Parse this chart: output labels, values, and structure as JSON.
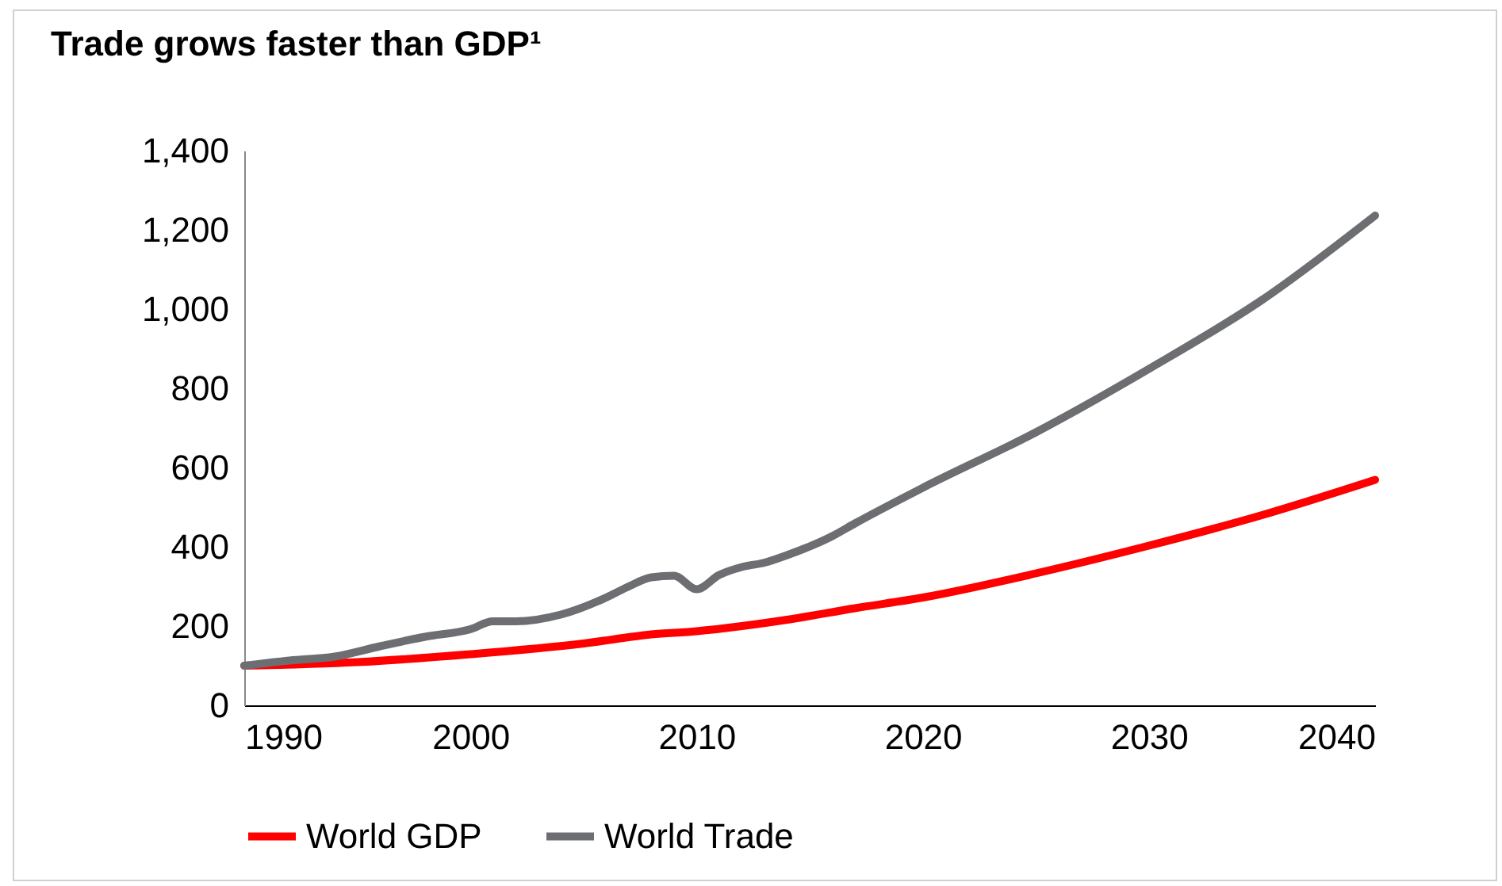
{
  "chart_data": {
    "type": "line",
    "title": "Trade grows faster than GDP¹",
    "xlim": [
      1990,
      2040
    ],
    "xticks": [
      1990,
      2000,
      2010,
      2020,
      2030,
      2040
    ],
    "ylim": [
      0,
      1400
    ],
    "yticks": [
      0,
      200,
      400,
      600,
      800,
      {
        "value": 1000,
        "label": "1,000"
      },
      {
        "value": 1200,
        "label": "1,200"
      },
      {
        "value": 1400,
        "label": "1,400"
      }
    ],
    "grid": false,
    "legend": "bottom",
    "series": [
      {
        "name": "World GDP",
        "color": "#ff0000",
        "x": [
          1990,
          1995,
          2000,
          2005,
          2008,
          2010,
          2012,
          2014,
          2017,
          2020,
          2025,
          2030,
          2035,
          2040
        ],
        "values": [
          100,
          109,
          129,
          156,
          179,
          187,
          200,
          216,
          245,
          272,
          333,
          403,
          480,
          569
        ]
      },
      {
        "name": "World Trade",
        "color": "#6d6e71",
        "x": [
          1990,
          1992,
          1994,
          1996,
          1998,
          2000,
          2001,
          2002,
          2004,
          2006,
          2007,
          2008,
          2009,
          2010,
          2011,
          2012,
          2013,
          2014,
          2016,
          2017,
          2020,
          2025,
          2030,
          2035,
          2040
        ],
        "values": [
          100,
          113,
          123,
          149,
          173,
          192,
          212,
          212,
          229,
          272,
          300,
          323,
          327,
          293,
          329,
          349,
          360,
          379,
          427,
          459,
          549,
          689,
          849,
          1023,
          1236
        ]
      }
    ]
  }
}
